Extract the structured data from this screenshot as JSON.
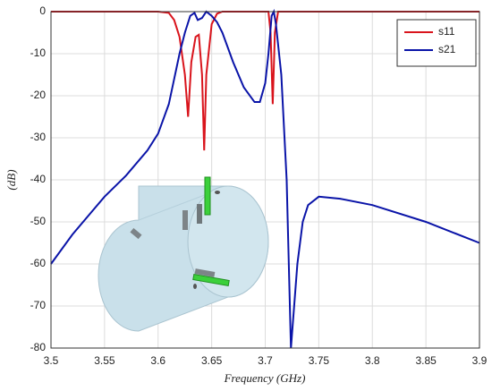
{
  "chart_data": {
    "type": "line",
    "xlabel": "Frequency (GHz)",
    "ylabel": "(dB)",
    "xlim": [
      3.5,
      3.9
    ],
    "ylim": [
      -80,
      0
    ],
    "xticks": [
      3.5,
      3.55,
      3.6,
      3.65,
      3.7,
      3.75,
      3.8,
      3.85,
      3.9
    ],
    "yticks": [
      0,
      -10,
      -20,
      -30,
      -40,
      -50,
      -60,
      -70,
      -80
    ],
    "grid": true,
    "legend": "upper-right",
    "series": [
      {
        "name": "s11",
        "color": "#d9141c",
        "x": [
          3.5,
          3.55,
          3.6,
          3.61,
          3.615,
          3.62,
          3.625,
          3.628,
          3.631,
          3.635,
          3.638,
          3.641,
          3.643,
          3.645,
          3.65,
          3.655,
          3.66,
          3.7,
          3.703,
          3.705,
          3.707,
          3.709,
          3.712,
          3.8,
          3.9
        ],
        "values": [
          0,
          0,
          0,
          -0.3,
          -2,
          -6,
          -15,
          -25,
          -12,
          -6,
          -5.5,
          -15,
          -33,
          -15,
          -3,
          -0.5,
          0,
          0,
          0,
          -5,
          -22,
          -5,
          0,
          0,
          0
        ]
      },
      {
        "name": "s21",
        "color": "#0a14a8",
        "x": [
          3.5,
          3.52,
          3.54,
          3.55,
          3.57,
          3.59,
          3.6,
          3.61,
          3.62,
          3.625,
          3.63,
          3.634,
          3.637,
          3.641,
          3.645,
          3.65,
          3.655,
          3.66,
          3.67,
          3.68,
          3.69,
          3.695,
          3.7,
          3.703,
          3.706,
          3.708,
          3.71,
          3.715,
          3.72,
          3.724,
          3.73,
          3.735,
          3.74,
          3.75,
          3.77,
          3.8,
          3.85,
          3.9
        ],
        "values": [
          -60,
          -53,
          -47,
          -44,
          -39,
          -33,
          -29,
          -22,
          -10,
          -5,
          -1,
          -0.3,
          -2,
          -1.5,
          0,
          -1,
          -2.5,
          -5,
          -12,
          -18,
          -21.5,
          -21.5,
          -17,
          -10,
          -1,
          0,
          -3,
          -15,
          -40,
          -80,
          -60,
          -50,
          -46,
          -44,
          -44.5,
          -46,
          -50,
          -55
        ]
      }
    ]
  }
}
